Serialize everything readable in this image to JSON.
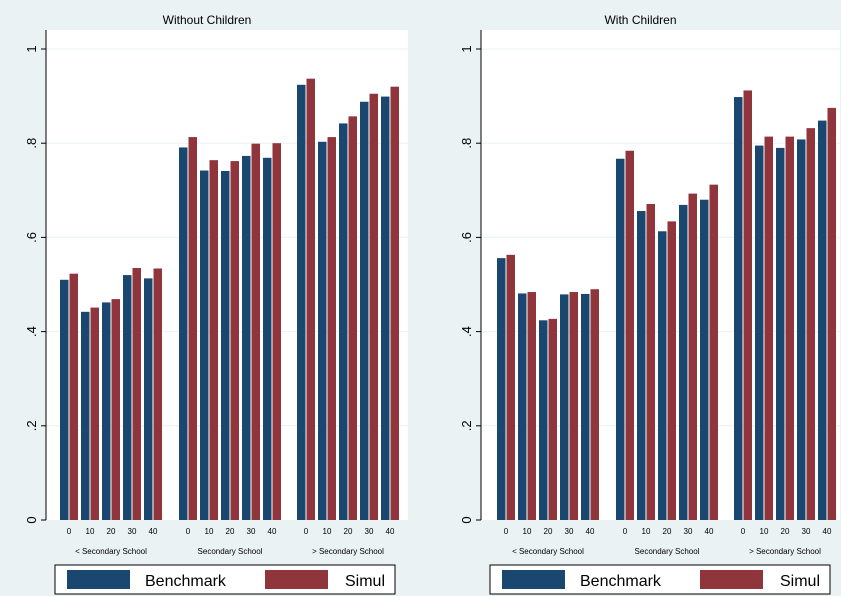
{
  "chart_data": [
    {
      "type": "bar",
      "title": "Without Children",
      "ylim": [
        0,
        1
      ],
      "yticks": [
        {
          "value": 0,
          "label": "0"
        },
        {
          "value": 0.2,
          "label": ".2"
        },
        {
          "value": 0.4,
          "label": ".4"
        },
        {
          "value": 0.6,
          "label": ".6"
        },
        {
          "value": 0.8,
          "label": ".8"
        },
        {
          "value": 1,
          "label": "1"
        }
      ],
      "grid": true,
      "legend_position": "bottom",
      "groups": [
        {
          "label": "< Secondary School",
          "categories": [
            "0",
            "10",
            "20",
            "30",
            "40"
          ]
        },
        {
          "label": "Secondary School",
          "categories": [
            "0",
            "10",
            "20",
            "30",
            "40"
          ]
        },
        {
          "label": "> Secondary School",
          "categories": [
            "0",
            "10",
            "20",
            "30",
            "40"
          ]
        }
      ],
      "series": [
        {
          "name": "Benchmark",
          "color": "#1a476f",
          "values": [
            0.51,
            0.442,
            0.462,
            0.52,
            0.513,
            0.791,
            0.742,
            0.741,
            0.773,
            0.769,
            0.924,
            0.803,
            0.842,
            0.888,
            0.899
          ]
        },
        {
          "name": "Simul",
          "color": "#90353b",
          "values": [
            0.523,
            0.451,
            0.469,
            0.535,
            0.534,
            0.813,
            0.764,
            0.762,
            0.799,
            0.8,
            0.937,
            0.813,
            0.857,
            0.905,
            0.92
          ]
        }
      ]
    },
    {
      "type": "bar",
      "title": "With Children",
      "ylim": [
        0,
        1
      ],
      "yticks": [
        {
          "value": 0,
          "label": "0"
        },
        {
          "value": 0.2,
          "label": ".2"
        },
        {
          "value": 0.4,
          "label": ".4"
        },
        {
          "value": 0.6,
          "label": ".6"
        },
        {
          "value": 0.8,
          "label": ".8"
        },
        {
          "value": 1,
          "label": "1"
        }
      ],
      "grid": true,
      "legend_position": "bottom",
      "groups": [
        {
          "label": "< Secondary School",
          "categories": [
            "0",
            "10",
            "20",
            "30",
            "40"
          ]
        },
        {
          "label": "Secondary School",
          "categories": [
            "0",
            "10",
            "20",
            "30",
            "40"
          ]
        },
        {
          "label": "> Secondary School",
          "categories": [
            "0",
            "10",
            "20",
            "30",
            "40"
          ]
        }
      ],
      "series": [
        {
          "name": "Benchmark",
          "color": "#1a476f",
          "values": [
            0.556,
            0.481,
            0.424,
            0.479,
            0.48,
            0.767,
            0.656,
            0.613,
            0.669,
            0.68,
            0.898,
            0.795,
            0.79,
            0.808,
            0.848
          ]
        },
        {
          "name": "Simul",
          "color": "#90353b",
          "values": [
            0.563,
            0.484,
            0.427,
            0.484,
            0.49,
            0.784,
            0.671,
            0.634,
            0.693,
            0.712,
            0.912,
            0.814,
            0.814,
            0.832,
            0.875
          ]
        }
      ]
    }
  ],
  "colors": {
    "figure_background": "#eaf2f3",
    "plot_background": "#ffffff",
    "title_strip": "#eaf2f3",
    "grid": "#eaf2f3",
    "axis": "#000000"
  }
}
